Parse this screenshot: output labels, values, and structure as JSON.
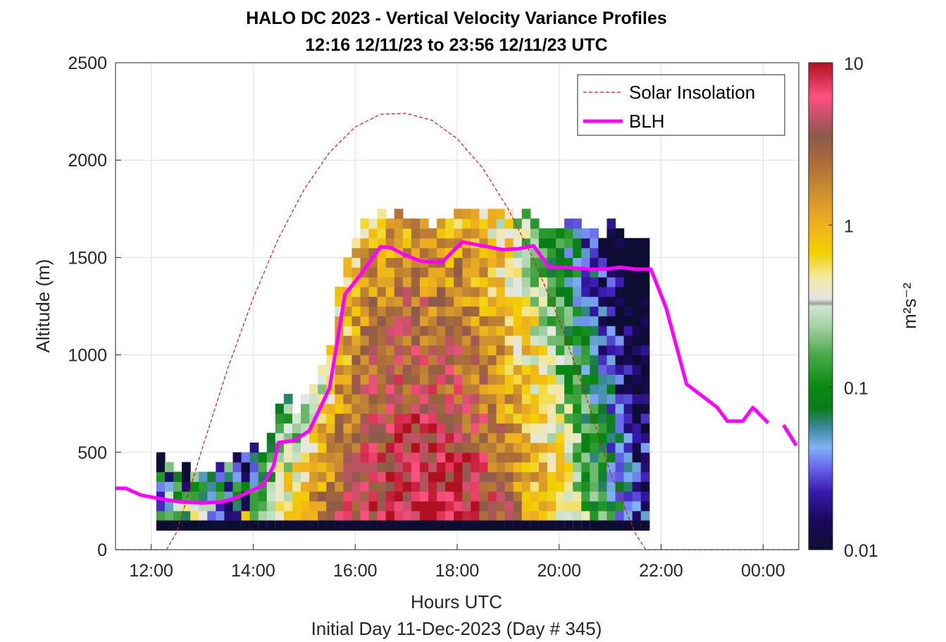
{
  "chart_data": {
    "type": "heatmap",
    "title": "HALO DC 2023 - Vertical Velocity Variance Profiles",
    "subtitle": "12:16 12/11/23 to 23:56 12/11/23  UTC",
    "xlabel": "Hours UTC",
    "xlabel2": "Initial Day 11-Dec-2023 (Day # 345)",
    "ylabel": "Altitude (m)",
    "xlim": [
      11.3,
      24.7
    ],
    "ylim": [
      0,
      2500
    ],
    "x_ticks": [
      12,
      14,
      16,
      18,
      20,
      22,
      24
    ],
    "x_tick_labels": [
      "12:00",
      "14:00",
      "16:00",
      "18:00",
      "20:00",
      "22:00",
      "00:00"
    ],
    "y_ticks": [
      0,
      500,
      1000,
      1500,
      2000,
      2500
    ],
    "y_tick_labels": [
      "0",
      "500",
      "1000",
      "1500",
      "2000",
      "2500"
    ],
    "grid": true,
    "legend_position": "top-right",
    "colorbar": {
      "label": "m²s⁻²",
      "scale": "log",
      "range": [
        0.01,
        10
      ],
      "ticks": [
        0.01,
        0.1,
        1,
        10
      ],
      "tick_labels": [
        "0.01",
        "0.1",
        "1",
        "10"
      ]
    },
    "series": [
      {
        "name": "Solar Insolation",
        "type": "line",
        "style": "dashed",
        "color": "#e01010",
        "x": [
          11.3,
          12.3,
          12.5,
          13.0,
          13.5,
          14.0,
          14.5,
          15.0,
          15.5,
          16.0,
          16.5,
          17.0,
          17.5,
          18.0,
          18.5,
          19.0,
          19.5,
          20.0,
          20.5,
          21.0,
          21.5,
          21.7,
          22.0,
          24.7
        ],
        "y": [
          0,
          0,
          90,
          520,
          930,
          1290,
          1600,
          1850,
          2040,
          2170,
          2235,
          2240,
          2205,
          2110,
          1960,
          1750,
          1490,
          1180,
          810,
          400,
          80,
          0,
          0,
          0
        ]
      },
      {
        "name": "BLH",
        "type": "line",
        "color": "#ff00ff",
        "x": [
          11.3,
          11.5,
          11.8,
          12.2,
          12.6,
          13.0,
          13.4,
          13.7,
          14.1,
          14.2,
          14.4,
          14.5,
          14.8,
          15.1,
          15.5,
          15.8,
          16.1,
          16.5,
          16.7,
          17.0,
          17.3,
          17.7,
          18.1,
          18.5,
          18.9,
          19.2,
          19.5,
          19.8,
          20.1,
          20.6,
          20.9,
          21.2,
          21.5,
          21.8,
          22.1,
          22.5,
          22.8,
          23.1,
          23.3,
          23.6,
          23.8,
          24.1
        ],
        "y": [
          315,
          315,
          280,
          260,
          245,
          240,
          245,
          270,
          320,
          330,
          430,
          550,
          560,
          610,
          830,
          1310,
          1410,
          1555,
          1550,
          1510,
          1480,
          1475,
          1580,
          1560,
          1540,
          1545,
          1560,
          1450,
          1450,
          1440,
          1440,
          1450,
          1440,
          1440,
          1240,
          850,
          790,
          730,
          660,
          660,
          730,
          650
        ]
      },
      {
        "name": "",
        "type": "line",
        "color": "#ff00ff",
        "x": [
          24.4,
          24.65
        ],
        "y": [
          640,
          535
        ]
      }
    ],
    "heatmap_grid": {
      "x_start": 12.1,
      "x_step": 0.1667,
      "y_bottom": 100,
      "y_step": 50,
      "value_units": "m²s⁻²"
    }
  }
}
